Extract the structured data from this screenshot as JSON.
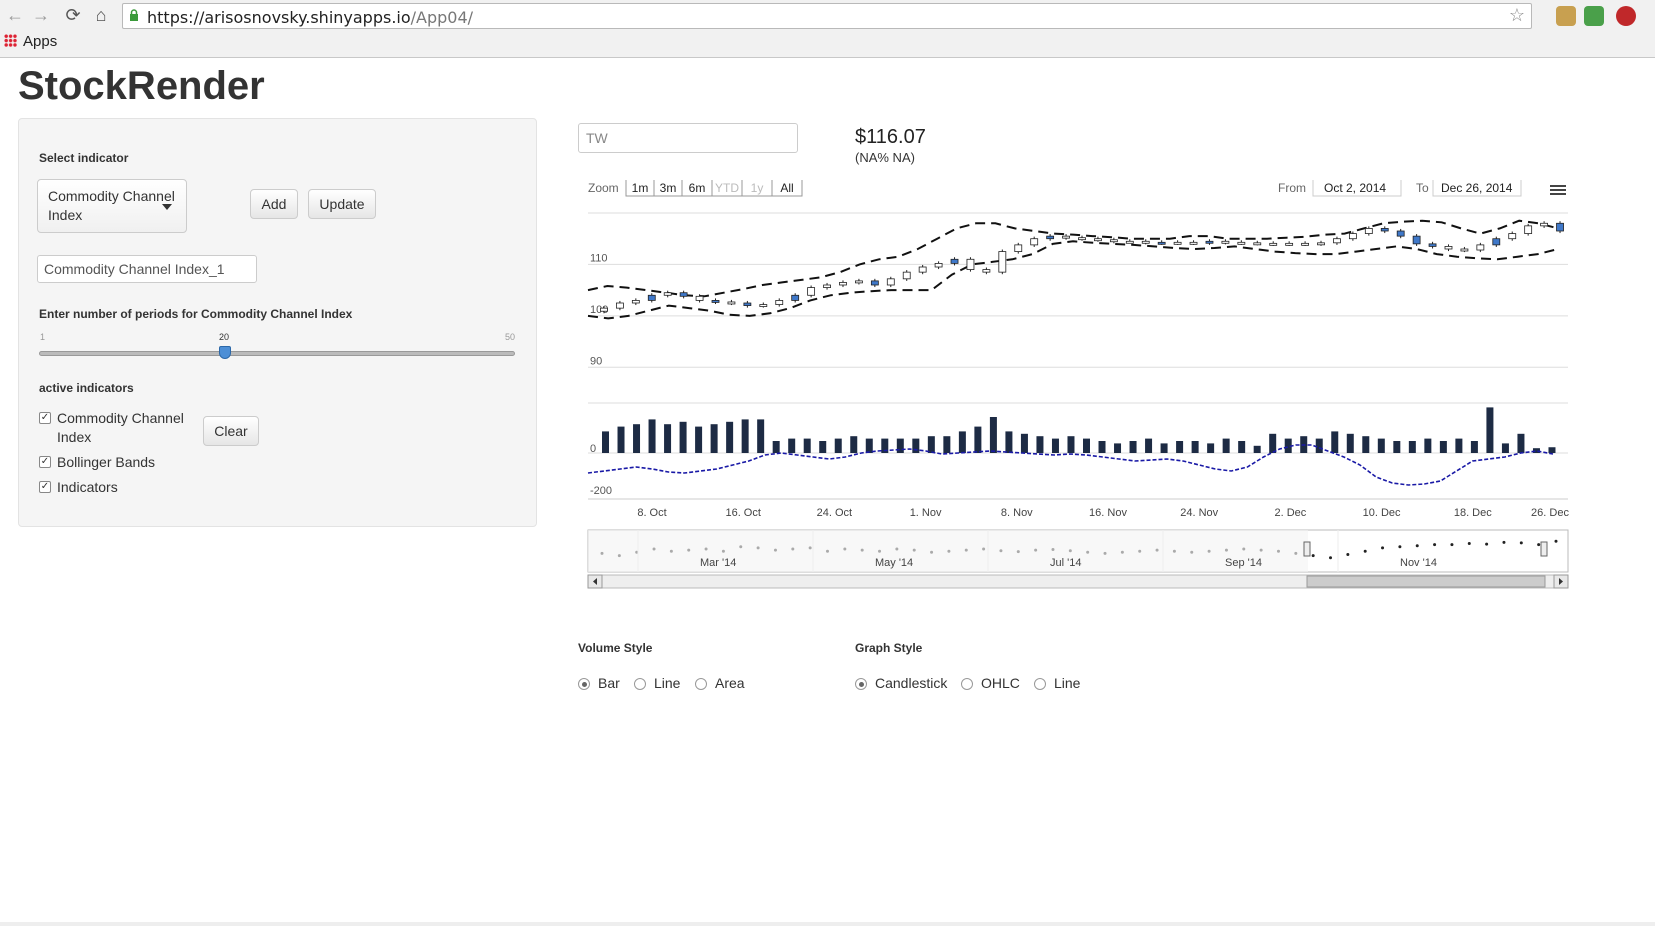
{
  "browser": {
    "url_host": "https://arisosnovsky.shinyapps.io",
    "url_path": "/App04/",
    "bookmarks_label": "Apps"
  },
  "app": {
    "title": "StockRender"
  },
  "sidebar": {
    "select_label": "Select indicator",
    "select_value": "Commodity Channel Index",
    "add_label": "Add",
    "update_label": "Update",
    "name_value": "Commodity Channel Index_1",
    "periods_label": "Enter number of periods for Commodity Channel Index",
    "slider": {
      "min": "1",
      "max": "50",
      "value": "20",
      "fraction": 0.388
    },
    "active_label": "active indicators",
    "indicators": [
      {
        "label": "Commodity Channel Index",
        "checked": true
      },
      {
        "label": "Bollinger Bands",
        "checked": true
      },
      {
        "label": "Indicators",
        "checked": true
      }
    ],
    "clear_label": "Clear"
  },
  "quote": {
    "ticker": "TW",
    "price": "$116.07",
    "change": "(NA% NA)"
  },
  "chart_data": {
    "type": "candlestick",
    "zoom_label": "Zoom",
    "zoom_buttons": [
      "1m",
      "3m",
      "6m",
      "YTD",
      "1y",
      "All"
    ],
    "from_label": "From",
    "from_value": "Oct 2, 2014",
    "to_label": "To",
    "to_value": "Dec 26, 2014",
    "price_axis_ticks": [
      "110",
      "100",
      "90"
    ],
    "indicator_axis_ticks": [
      "0",
      "-200"
    ],
    "x_ticks": [
      "8. Oct",
      "16. Oct",
      "24. Oct",
      "1. Nov",
      "8. Nov",
      "16. Nov",
      "24. Nov",
      "2. Dec",
      "10. Dec",
      "18. Dec",
      "26. Dec"
    ],
    "navigator_ticks": [
      "Mar '14",
      "May '14",
      "Jul '14",
      "Sep '14",
      "Nov '14"
    ],
    "price_range": [
      85,
      120
    ],
    "closes": [
      101.5,
      102.5,
      103,
      104,
      104.5,
      103.8,
      103,
      102.7,
      102.5,
      102,
      102.2,
      103,
      104,
      105.5,
      106,
      106.5,
      106.8,
      106,
      107.2,
      108.5,
      109.5,
      110.2,
      111,
      109,
      108.5,
      112.5,
      113.8,
      115,
      115.5,
      115.2,
      115,
      114.8,
      114.5,
      114.5,
      114.3,
      114.2,
      114.3,
      114.2,
      114.5,
      114.3,
      114.2,
      114.1,
      114,
      114.1,
      114,
      114.2,
      115,
      116,
      117,
      116.5,
      115.5,
      114,
      113.5,
      113,
      112.8,
      113.8,
      115,
      116,
      117.5,
      118,
      116.5
    ],
    "up": [
      true,
      true,
      true,
      false,
      true,
      false,
      true,
      false,
      true,
      false,
      true,
      true,
      false,
      true,
      true,
      true,
      true,
      false,
      true,
      true,
      true,
      true,
      false,
      true,
      true,
      true,
      true,
      true,
      false,
      true,
      true,
      true,
      true,
      true,
      true,
      false,
      true,
      true,
      false,
      true,
      true,
      true,
      true,
      true,
      true,
      true,
      true,
      true,
      true,
      false,
      false,
      false,
      false,
      true,
      true,
      true,
      false,
      true,
      true,
      true,
      false
    ],
    "upper_band": [
      105,
      105.8,
      105.5,
      105,
      104.5,
      104,
      103.8,
      104.5,
      105.2,
      106,
      106.5,
      107,
      107.5,
      108.5,
      110,
      111,
      111.5,
      113,
      115,
      117,
      118,
      118,
      117,
      116.5,
      116,
      115.8,
      115.5,
      115.3,
      115,
      115,
      115,
      115.5,
      115.5,
      115,
      115,
      115,
      115.2,
      115.4,
      115.8,
      116,
      117,
      118,
      118.3,
      118.5,
      118.2,
      117,
      116,
      117,
      118.5,
      118,
      117
    ],
    "lower_band": [
      100,
      99.5,
      100,
      101,
      102,
      101.5,
      101,
      100.2,
      100,
      100.5,
      101.5,
      103,
      104,
      104.5,
      104.8,
      105,
      105,
      105,
      108,
      110,
      110.5,
      111,
      112,
      114,
      114.5,
      114.2,
      114,
      113.8,
      113.5,
      113.2,
      113,
      113.2,
      113.5,
      113,
      112.5,
      112.2,
      112,
      112,
      112.5,
      113,
      113.5,
      113,
      112,
      111.5,
      111.2,
      111,
      111.5,
      112,
      113
    ],
    "volume": [
      0.45,
      0.55,
      0.6,
      0.7,
      0.6,
      0.65,
      0.55,
      0.6,
      0.65,
      0.7,
      0.7,
      0.25,
      0.3,
      0.3,
      0.25,
      0.3,
      0.35,
      0.3,
      0.3,
      0.3,
      0.3,
      0.35,
      0.35,
      0.45,
      0.55,
      0.75,
      0.45,
      0.4,
      0.35,
      0.3,
      0.35,
      0.3,
      0.25,
      0.2,
      0.25,
      0.3,
      0.2,
      0.25,
      0.25,
      0.2,
      0.3,
      0.25,
      0.15,
      0.4,
      0.3,
      0.35,
      0.3,
      0.45,
      0.4,
      0.35,
      0.3,
      0.25,
      0.25,
      0.3,
      0.25,
      0.3,
      0.25,
      0.95,
      0.2,
      0.4,
      0.1,
      0.12
    ],
    "cci": [
      -100,
      -90,
      -80,
      -70,
      -80,
      -95,
      -100,
      -90,
      -80,
      -60,
      -40,
      -10,
      0,
      -10,
      -20,
      -30,
      -20,
      0,
      10,
      15,
      20,
      10,
      -5,
      0,
      5,
      10,
      5,
      0,
      -5,
      -10,
      -5,
      -10,
      -20,
      -30,
      -40,
      -35,
      -30,
      -40,
      -60,
      -80,
      -90,
      -70,
      -20,
      20,
      40,
      40,
      10,
      -20,
      -60,
      -120,
      -150,
      -160,
      -155,
      -140,
      -90,
      -40,
      -30,
      -20,
      0,
      10,
      -5
    ],
    "navigator_series": [
      0.3,
      0.2,
      0.35,
      0.5,
      0.4,
      0.45,
      0.5,
      0.4,
      0.6,
      0.55,
      0.45,
      0.5,
      0.55,
      0.4,
      0.5,
      0.45,
      0.4,
      0.5,
      0.45,
      0.35,
      0.4,
      0.45,
      0.5,
      0.42,
      0.38,
      0.45,
      0.48,
      0.42,
      0.35,
      0.3,
      0.35,
      0.4,
      0.45,
      0.4,
      0.35,
      0.4,
      0.45,
      0.5,
      0.45,
      0.4,
      0.3,
      0.2,
      0.1,
      0.25,
      0.4,
      0.55,
      0.6,
      0.65,
      0.7,
      0.7,
      0.75,
      0.72,
      0.8,
      0.78,
      0.7,
      0.85
    ]
  },
  "options": {
    "volume_style_label": "Volume Style",
    "volume_styles": [
      "Bar",
      "Line",
      "Area"
    ],
    "volume_selected": 0,
    "graph_style_label": "Graph Style",
    "graph_styles": [
      "Candlestick",
      "OHLC",
      "Line"
    ],
    "graph_selected": 0
  }
}
